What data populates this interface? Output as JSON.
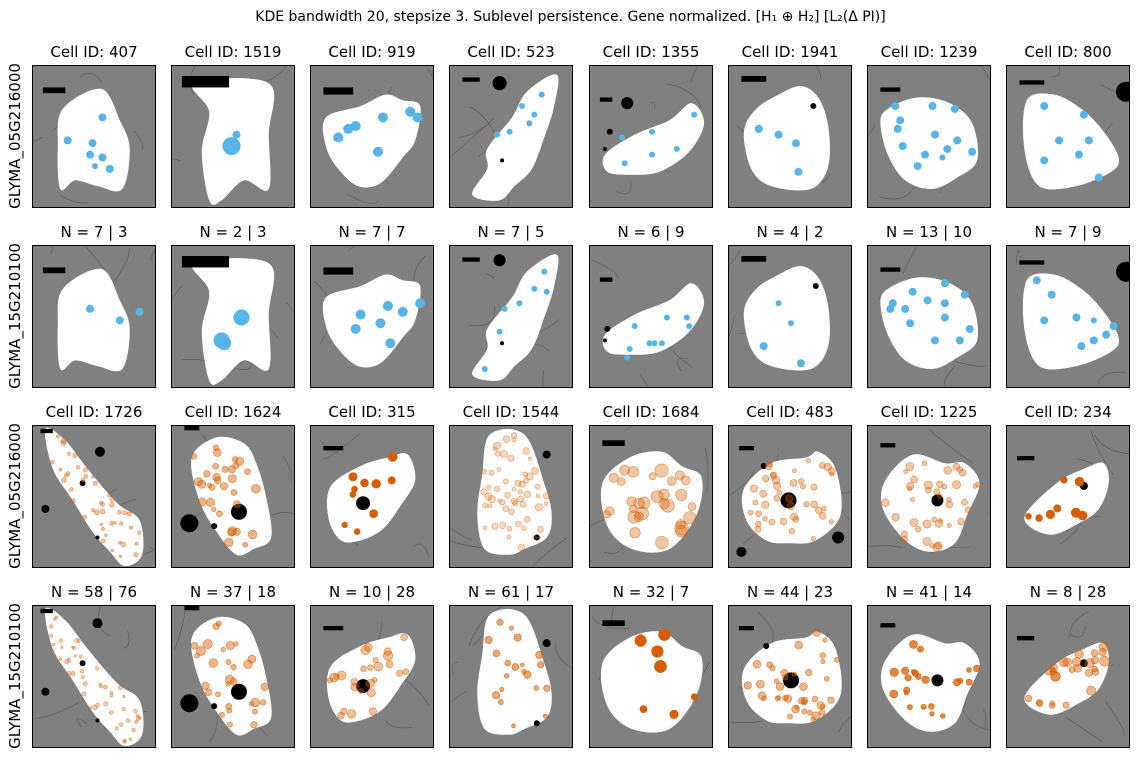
{
  "suptitle": "KDE bandwidth 20, stepsize 3. Sublevel persistence. Gene normalized. [H₁ ⊕ H₂] [L₂(Δ PI)]",
  "rows": [
    {
      "ylabel": "GLYMA_05G216000",
      "color": "#56b4e9",
      "color_name": "sky-blue"
    },
    {
      "ylabel": "GLYMA_15G210100",
      "color": "#56b4e9",
      "color_name": "sky-blue"
    },
    {
      "ylabel": "GLYMA_05G216000",
      "color": "#d55e00",
      "color_name": "vermillion"
    },
    {
      "ylabel": "GLYMA_15G210100",
      "color": "#d55e00",
      "color_name": "vermillion"
    }
  ],
  "titles": [
    [
      "Cell ID: 407",
      "Cell ID: 1519",
      "Cell ID: 919",
      "Cell ID: 523",
      "Cell ID: 1355",
      "Cell ID: 1941",
      "Cell ID: 1239",
      "Cell ID: 800"
    ],
    [
      "N = 7 | 3",
      "N = 2 | 3",
      "N = 7 | 7",
      "N = 7 | 5",
      "N = 6 | 9",
      "N = 4 | 2",
      "N = 13 | 10",
      "N = 7 | 9"
    ],
    [
      "Cell ID: 1726",
      "Cell ID: 1624",
      "Cell ID: 315",
      "Cell ID: 1544",
      "Cell ID: 1684",
      "Cell ID: 483",
      "Cell ID: 1225",
      "Cell ID: 234"
    ],
    [
      "N = 58 | 76",
      "N = 37 | 18",
      "N = 10 | 28",
      "N = 61 | 17",
      "N = 32 | 7",
      "N = 44 | 23",
      "N = 41 | 14",
      "N = 8 | 28"
    ]
  ],
  "colors": {
    "background": "#808080",
    "cell": "#ffffff",
    "nucleus": "#000000",
    "blue": "#56b4e9",
    "orange": "#d55e00"
  }
}
